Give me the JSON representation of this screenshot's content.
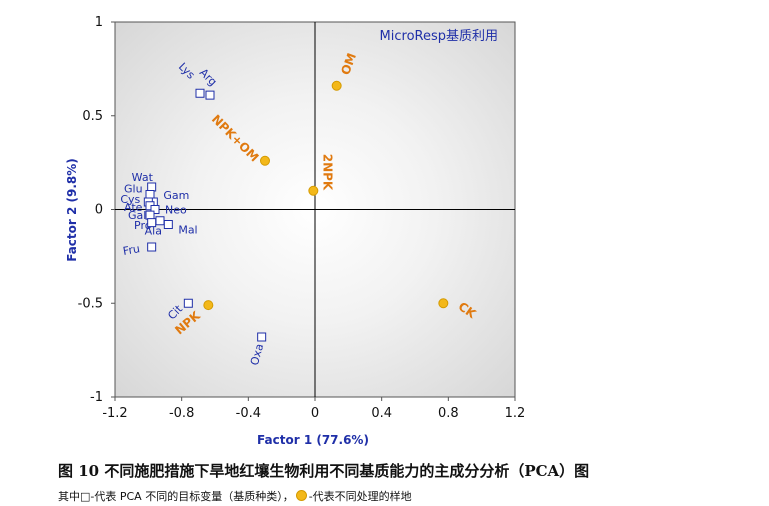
{
  "chart_data": {
    "type": "scatter",
    "title": "MicroResp基质利用",
    "xlabel": "Factor 1 (77.6%)",
    "ylabel": "Factor 2 (9.8%)",
    "xlim": [
      -1.2,
      1.2
    ],
    "ylim": [
      -1,
      1
    ],
    "xticks": [
      "-1.2",
      "-0.8",
      "-0.4",
      "0",
      "0.4",
      "0.8",
      "1.2"
    ],
    "xtick_values": [
      -1.2,
      -0.8,
      -0.4,
      0,
      0.4,
      0.8,
      1.2
    ],
    "yticks": [
      "1",
      "0.5",
      "0",
      "-0.5",
      "-1"
    ],
    "ytick_values": [
      1,
      0.5,
      0,
      -0.5,
      -1
    ],
    "colors": {
      "substrate": "#1f2fa8",
      "treatment_fill": "#f3b81a",
      "treatment_text": "#e07a10",
      "axis_label": "#1f2fa8"
    },
    "series": [
      {
        "marker": "square",
        "points": [
          {
            "label": "Lys",
            "x": -0.69,
            "y": 0.62
          },
          {
            "label": "Arg",
            "x": -0.63,
            "y": 0.61
          },
          {
            "label": "Wat",
            "x": -0.98,
            "y": 0.12
          },
          {
            "label": "Glu",
            "x": -0.99,
            "y": 0.08
          },
          {
            "label": "Gam",
            "x": -0.97,
            "y": 0.04
          },
          {
            "label": "Cys",
            "x": -1.0,
            "y": 0.04
          },
          {
            "label": "Ate",
            "x": -0.99,
            "y": 0.02
          },
          {
            "label": "Neo",
            "x": -0.96,
            "y": 0.0
          },
          {
            "label": "Gal",
            "x": -0.99,
            "y": -0.03
          },
          {
            "label": "Pro",
            "x": -0.93,
            "y": -0.06
          },
          {
            "label": "Ala",
            "x": -0.98,
            "y": -0.07
          },
          {
            "label": "Mal",
            "x": -0.88,
            "y": -0.08
          },
          {
            "label": "Fru",
            "x": -0.98,
            "y": -0.2
          },
          {
            "label": "Cit",
            "x": -0.76,
            "y": -0.5
          },
          {
            "label": "Oxa",
            "x": -0.32,
            "y": -0.68
          }
        ]
      },
      {
        "marker": "circle",
        "points": [
          {
            "label": "OM",
            "x": 0.13,
            "y": 0.66
          },
          {
            "label": "NPK+OM",
            "x": -0.3,
            "y": 0.26
          },
          {
            "label": "2NPK",
            "x": -0.01,
            "y": 0.1
          },
          {
            "label": "NPK",
            "x": -0.64,
            "y": -0.51
          },
          {
            "label": "CK",
            "x": 0.77,
            "y": -0.5
          }
        ]
      }
    ]
  },
  "caption": "图 10  不同施肥措施下旱地红壤生物利用不同基质能力的主成分分析（PCA）图",
  "note_before": "其中□-代表 PCA 不同的目标变量（基质种类），",
  "note_after": "-代表不同处理的样地"
}
